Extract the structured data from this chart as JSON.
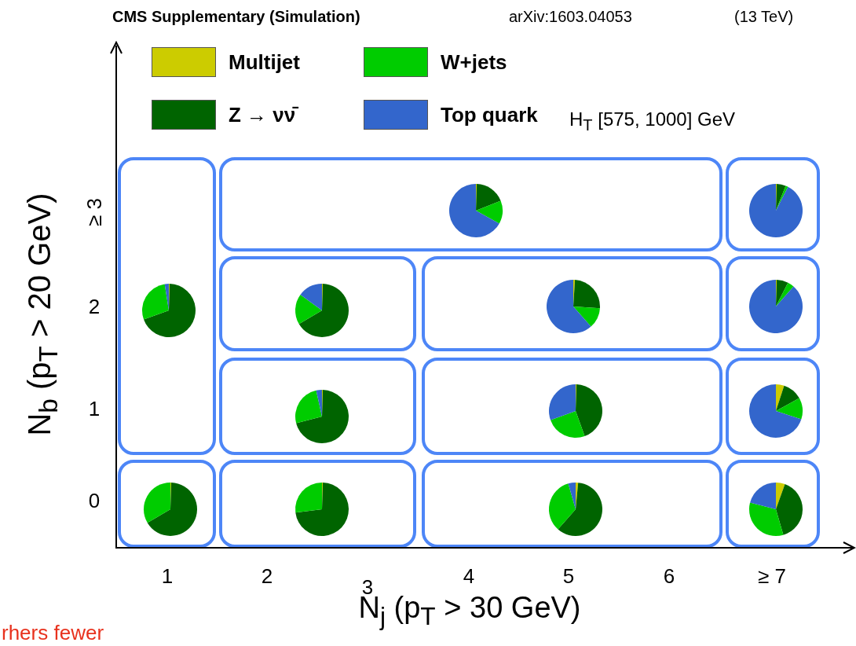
{
  "chart_data": [
    {
      "type": "other",
      "title": "CMS Supplementary (Simulation)",
      "xlabel": "N$_{j}$ (p$_{T}$ > 30 GeV)",
      "ylabel": "N$_{b}$ (p$_{T}$ > 20 GeV)",
      "categories": [
        "1",
        "2",
        "3",
        "4",
        "5",
        "6",
        "≥ 7"
      ],
      "y_categories": [
        "≥ 3",
        "2",
        "1",
        "0"
      ],
      "annotations": [
        "arXiv:1603.04053",
        "(13 TeV)",
        "H$_{T}$ [575, 1000] GeV",
        "rhers fewer"
      ]
    },
    {
      "type": "pie",
      "legend": "top",
      "categories": [
        "Multijet",
        "Z → νν̄",
        "W+jets",
        "Top quark"
      ],
      "colors": [
        "#cccc00",
        "#006400",
        "#00cc00",
        "#3366cc"
      ],
      "values": [
        0.5,
        69,
        28,
        2.5
      ]
    },
    {
      "type": "pie",
      "colors": [
        "#cccc00",
        "#006400",
        "#00cc00",
        "#3366cc"
      ],
      "values": [
        0.5,
        66,
        33.5,
        0
      ]
    },
    {
      "type": "pie",
      "colors": [
        "#cccc00",
        "#006400",
        "#00cc00",
        "#3366cc"
      ],
      "values": [
        0.5,
        66,
        18.5,
        15
      ]
    },
    {
      "type": "pie",
      "colors": [
        "#cccc00",
        "#006400",
        "#00cc00",
        "#3366cc"
      ],
      "values": [
        0.5,
        70.5,
        25.5,
        3.5
      ]
    },
    {
      "type": "pie",
      "colors": [
        "#cccc00",
        "#006400",
        "#00cc00",
        "#3366cc"
      ],
      "values": [
        0.5,
        72.5,
        27,
        0
      ]
    },
    {
      "type": "pie",
      "colors": [
        "#cccc00",
        "#006400",
        "#00cc00",
        "#3366cc"
      ],
      "values": [
        0.5,
        18.5,
        14,
        67
      ]
    },
    {
      "type": "pie",
      "colors": [
        "#cccc00",
        "#006400",
        "#00cc00",
        "#3366cc"
      ],
      "values": [
        0.5,
        5.5,
        1.5,
        92.5
      ]
    },
    {
      "type": "pie",
      "colors": [
        "#cccc00",
        "#006400",
        "#00cc00",
        "#3366cc"
      ],
      "values": [
        1,
        25,
        12.5,
        61.5
      ]
    },
    {
      "type": "pie",
      "colors": [
        "#cccc00",
        "#006400",
        "#00cc00",
        "#3366cc"
      ],
      "values": [
        0.5,
        7,
        4,
        88.5
      ]
    },
    {
      "type": "pie",
      "colors": [
        "#cccc00",
        "#006400",
        "#00cc00",
        "#3366cc"
      ],
      "values": [
        0.5,
        44,
        25,
        30.5
      ]
    },
    {
      "type": "pie",
      "colors": [
        "#cccc00",
        "#006400",
        "#00cc00",
        "#3366cc"
      ],
      "values": [
        5,
        12,
        13,
        70
      ]
    },
    {
      "type": "pie",
      "colors": [
        "#cccc00",
        "#006400",
        "#00cc00",
        "#3366cc"
      ],
      "values": [
        1.5,
        60,
        34,
        4.5
      ]
    },
    {
      "type": "pie",
      "colors": [
        "#cccc00",
        "#006400",
        "#00cc00",
        "#3366cc"
      ],
      "values": [
        5.5,
        40,
        33.5,
        21
      ]
    }
  ]
}
